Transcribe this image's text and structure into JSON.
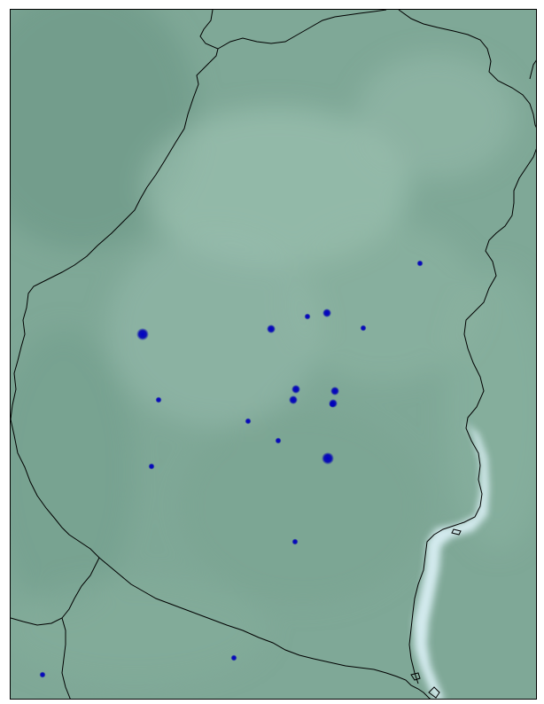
{
  "map": {
    "title": "",
    "colors": {
      "terrain": "#7fa897",
      "terrain_dark": "#6f9a86",
      "terrain_light": "#9cc0b0",
      "river": "#d8eef2",
      "marker": "#0000b4",
      "border": "#000000"
    },
    "markers": [
      {
        "id": "m1",
        "size": "large"
      },
      {
        "id": "m2",
        "size": "medium"
      },
      {
        "id": "m3",
        "size": "small"
      },
      {
        "id": "m4",
        "size": "small"
      },
      {
        "id": "m5",
        "size": "medium"
      },
      {
        "id": "m6",
        "size": "medium"
      },
      {
        "id": "m7",
        "size": "medium"
      },
      {
        "id": "m8",
        "size": "medium"
      },
      {
        "id": "m9",
        "size": "small"
      },
      {
        "id": "m10",
        "size": "small"
      },
      {
        "id": "m11",
        "size": "large"
      },
      {
        "id": "m12",
        "size": "small"
      },
      {
        "id": "m13",
        "size": "small"
      },
      {
        "id": "m14",
        "size": "small"
      },
      {
        "id": "m15",
        "size": "small"
      },
      {
        "id": "m16",
        "size": "small"
      },
      {
        "id": "m17",
        "size": "small"
      },
      {
        "id": "m18",
        "size": "medium"
      },
      {
        "id": "m19",
        "size": "small"
      }
    ]
  }
}
